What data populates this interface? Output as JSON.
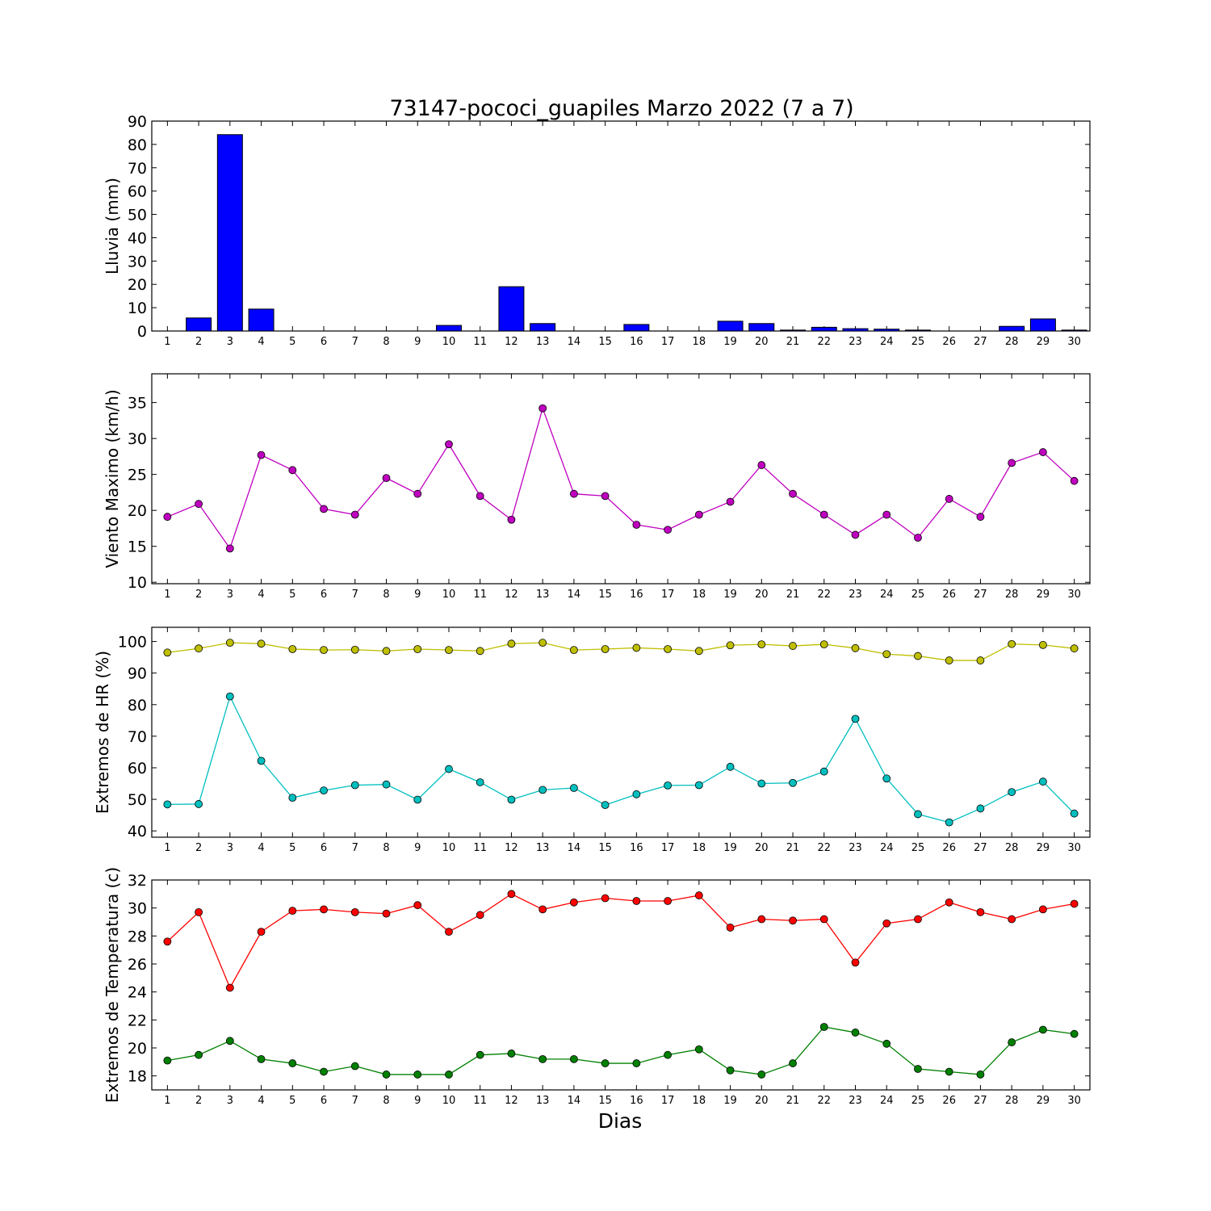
{
  "figure": {
    "title": "73147-pococi_guapiles Marzo 2022  (7 a 7)",
    "xlabel": "Dias"
  },
  "chart_data": [
    {
      "type": "bar",
      "ylabel": "Lluvia (mm)",
      "ylim": [
        0,
        90
      ],
      "yticks": [
        0,
        10,
        20,
        30,
        40,
        50,
        60,
        70,
        80,
        90
      ],
      "x": [
        1,
        2,
        3,
        4,
        5,
        6,
        7,
        8,
        9,
        10,
        11,
        12,
        13,
        14,
        15,
        16,
        17,
        18,
        19,
        20,
        21,
        22,
        23,
        24,
        25,
        26,
        27,
        28,
        29,
        30
      ],
      "series": [
        {
          "color": "#0000ff",
          "values": [
            0,
            5.6,
            84.2,
            9.4,
            0,
            0,
            0,
            0,
            0,
            2.4,
            0,
            19.0,
            3.2,
            0,
            0,
            2.8,
            0,
            0,
            4.2,
            3.2,
            0.4,
            1.6,
            1.0,
            0.8,
            0.4,
            0,
            0,
            2.0,
            5.2,
            0.4
          ]
        }
      ]
    },
    {
      "type": "line",
      "ylabel": "Viento Maximo (km/h)",
      "ylim": [
        9.8,
        39
      ],
      "yticks": [
        10,
        15,
        20,
        25,
        30,
        35
      ],
      "x": [
        1,
        2,
        3,
        4,
        5,
        6,
        7,
        8,
        9,
        10,
        11,
        12,
        13,
        14,
        15,
        16,
        17,
        18,
        19,
        20,
        21,
        22,
        23,
        24,
        25,
        26,
        27,
        28,
        29,
        30
      ],
      "series": [
        {
          "color": "#bf00bf",
          "values": [
            19.1,
            20.9,
            14.7,
            27.7,
            25.6,
            20.2,
            19.4,
            24.5,
            22.3,
            29.2,
            22.0,
            18.7,
            34.2,
            22.3,
            22.0,
            18.0,
            17.3,
            19.4,
            21.2,
            26.3,
            22.3,
            19.4,
            16.6,
            19.4,
            16.2,
            21.6,
            19.1,
            26.6,
            28.1,
            24.1
          ]
        }
      ]
    },
    {
      "type": "line",
      "ylabel": "Extremos de HR (%)",
      "ylim": [
        38,
        104.5
      ],
      "yticks": [
        40,
        50,
        60,
        70,
        80,
        90,
        100
      ],
      "x": [
        1,
        2,
        3,
        4,
        5,
        6,
        7,
        8,
        9,
        10,
        11,
        12,
        13,
        14,
        15,
        16,
        17,
        18,
        19,
        20,
        21,
        22,
        23,
        24,
        25,
        26,
        27,
        28,
        29,
        30
      ],
      "series": [
        {
          "color": "#bfbf00",
          "values": [
            96.5,
            97.8,
            99.6,
            99.3,
            97.6,
            97.3,
            97.4,
            97.0,
            97.6,
            97.3,
            97.0,
            99.3,
            99.6,
            97.3,
            97.6,
            98.0,
            97.6,
            97.0,
            98.8,
            99.1,
            98.6,
            99.1,
            97.9,
            96.0,
            95.4,
            94.0,
            94.0,
            99.2,
            98.9,
            97.8
          ]
        },
        {
          "color": "#00bfbf",
          "values": [
            48.4,
            48.5,
            82.6,
            62.2,
            50.5,
            52.8,
            54.5,
            54.7,
            49.9,
            59.6,
            55.4,
            49.9,
            53.0,
            53.6,
            48.2,
            51.6,
            54.4,
            54.5,
            60.3,
            55.0,
            55.2,
            58.8,
            75.5,
            56.6,
            45.3,
            42.7,
            47.1,
            52.3,
            55.6,
            45.5
          ]
        }
      ]
    },
    {
      "type": "line",
      "ylabel": "Extremos de Temperatura (c)",
      "ylim": [
        17,
        32
      ],
      "yticks": [
        18,
        20,
        22,
        24,
        26,
        28,
        30,
        32
      ],
      "x": [
        1,
        2,
        3,
        4,
        5,
        6,
        7,
        8,
        9,
        10,
        11,
        12,
        13,
        14,
        15,
        16,
        17,
        18,
        19,
        20,
        21,
        22,
        23,
        24,
        25,
        26,
        27,
        28,
        29,
        30
      ],
      "series": [
        {
          "color": "#ff0000",
          "values": [
            27.6,
            29.7,
            24.3,
            28.3,
            29.8,
            29.9,
            29.7,
            29.6,
            30.2,
            28.3,
            29.5,
            31.0,
            29.9,
            30.4,
            30.7,
            30.5,
            30.5,
            30.9,
            28.6,
            29.2,
            29.1,
            29.2,
            26.1,
            28.9,
            29.2,
            30.4,
            29.7,
            29.2,
            29.9,
            30.3
          ]
        },
        {
          "color": "#008000",
          "values": [
            19.1,
            19.5,
            20.5,
            19.2,
            18.9,
            18.3,
            18.7,
            18.1,
            18.1,
            18.1,
            19.5,
            19.6,
            19.2,
            19.2,
            18.9,
            18.9,
            19.5,
            19.9,
            18.4,
            18.1,
            18.9,
            21.5,
            21.1,
            20.3,
            18.5,
            18.3,
            18.1,
            20.4,
            21.3,
            21.0
          ]
        }
      ]
    }
  ]
}
